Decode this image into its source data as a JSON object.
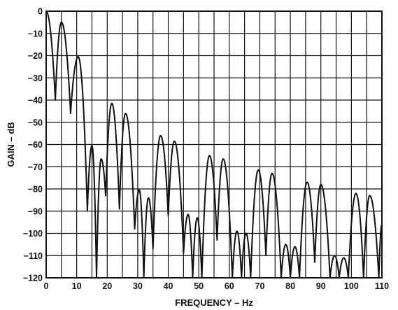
{
  "chart_data": {
    "type": "line",
    "xlabel": "FREQUENCY – Hz",
    "ylabel": "GAIN – dB",
    "xlim": [
      0,
      110
    ],
    "ylim": [
      -120,
      0
    ],
    "xticks": [
      "0",
      "10",
      "20",
      "30",
      "40",
      "50",
      "60",
      "70",
      "80",
      "90",
      "100",
      "110"
    ],
    "yticks": [
      "0",
      "−10",
      "−20",
      "−30",
      "−40",
      "−50",
      "−60",
      "−70",
      "−80",
      "−90",
      "−100",
      "−110",
      "−120"
    ],
    "x_grid_step": 5,
    "y_grid_step": 10,
    "grid": true,
    "lobe_peaks": [
      {
        "x": 0,
        "y": 0
      },
      {
        "x": 5,
        "y": -5
      },
      {
        "x": 10.5,
        "y": -20.5
      },
      {
        "x": 15,
        "y": -60.5
      },
      {
        "x": 18,
        "y": -66.5
      },
      {
        "x": 21.5,
        "y": -41.5
      },
      {
        "x": 26,
        "y": -46
      },
      {
        "x": 30.5,
        "y": -80.5
      },
      {
        "x": 33.5,
        "y": -84
      },
      {
        "x": 37.5,
        "y": -56
      },
      {
        "x": 42,
        "y": -58.5
      },
      {
        "x": 46.5,
        "y": -91.5
      },
      {
        "x": 49.5,
        "y": -93
      },
      {
        "x": 53.5,
        "y": -65
      },
      {
        "x": 58,
        "y": -66.5
      },
      {
        "x": 62.5,
        "y": -99
      },
      {
        "x": 65.5,
        "y": -100
      },
      {
        "x": 69.5,
        "y": -71.5
      },
      {
        "x": 74,
        "y": -73
      },
      {
        "x": 78.5,
        "y": -105
      },
      {
        "x": 81.5,
        "y": -106
      },
      {
        "x": 85.5,
        "y": -77
      },
      {
        "x": 90,
        "y": -78
      },
      {
        "x": 94.5,
        "y": -110
      },
      {
        "x": 97.5,
        "y": -111
      },
      {
        "x": 101.5,
        "y": -82
      },
      {
        "x": 106,
        "y": -83
      },
      {
        "x": 110,
        "y": -96
      }
    ],
    "nulls": [
      {
        "x": 3,
        "y": -40
      },
      {
        "x": 8,
        "y": -46
      },
      {
        "x": 13.5,
        "y": -90
      },
      {
        "x": 16.5,
        "y": -120
      },
      {
        "x": 19.5,
        "y": -83
      },
      {
        "x": 24,
        "y": -89
      },
      {
        "x": 29,
        "y": -98
      },
      {
        "x": 32,
        "y": -120
      },
      {
        "x": 35,
        "y": -107
      },
      {
        "x": 40,
        "y": -92
      },
      {
        "x": 45,
        "y": -109
      },
      {
        "x": 48,
        "y": -120
      },
      {
        "x": 51,
        "y": -120
      },
      {
        "x": 56,
        "y": -103
      },
      {
        "x": 61,
        "y": -120
      },
      {
        "x": 64,
        "y": -120
      },
      {
        "x": 67,
        "y": -120
      },
      {
        "x": 72,
        "y": -110
      },
      {
        "x": 77,
        "y": -120
      },
      {
        "x": 80,
        "y": -120
      },
      {
        "x": 83,
        "y": -120
      },
      {
        "x": 88,
        "y": -113
      },
      {
        "x": 93,
        "y": -120
      },
      {
        "x": 96,
        "y": -120
      },
      {
        "x": 99,
        "y": -120
      },
      {
        "x": 104,
        "y": -120
      },
      {
        "x": 109,
        "y": -120
      }
    ]
  }
}
